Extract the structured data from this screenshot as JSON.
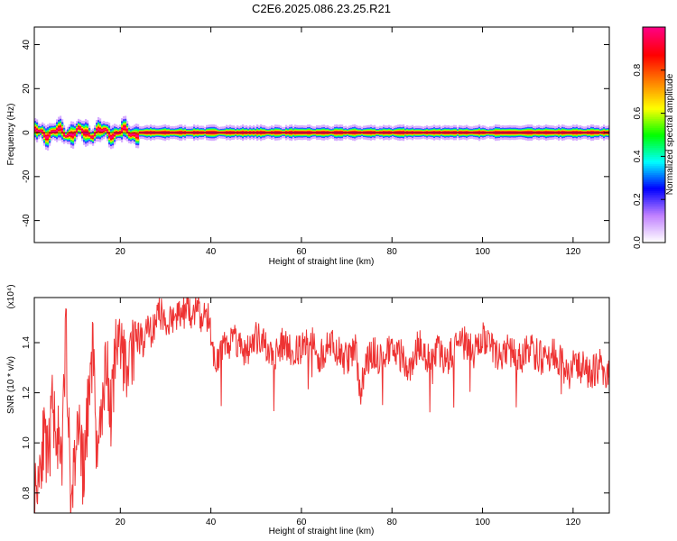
{
  "title": "C2E6.2025.086.23.25.R21",
  "chart_data": [
    {
      "type": "heatmap",
      "xlabel": "Height of straight line (km)",
      "ylabel": "Frequency (Hz)",
      "xlim": [
        1,
        128
      ],
      "ylim": [
        -50,
        48
      ],
      "x_ticks": [
        20,
        40,
        60,
        80,
        100,
        120
      ],
      "y_ticks": [
        -40,
        -20,
        0,
        20,
        40
      ],
      "colorbar": {
        "label": "Normalized spectral amplitude",
        "range": [
          0.0,
          1.0
        ],
        "ticks": [
          0.0,
          0.2,
          0.4,
          0.6,
          0.8
        ],
        "tick_labels": [
          "0.0",
          "0.2",
          "0.4",
          "0.6",
          "0.8"
        ],
        "colors": [
          "#ffffff",
          "#c080ff",
          "#0000ff",
          "#00ffff",
          "#00ff00",
          "#ffff00",
          "#ff8000",
          "#ff0000",
          "#ff0080"
        ]
      },
      "ridge": {
        "center_freq_hz": 0,
        "near_wobble_until_km": 24,
        "peak_amplitude": 1.0
      }
    },
    {
      "type": "line",
      "xlabel": "Height of straight line (km)",
      "ylabel": "SNR (10 * v/v)",
      "y_multiplier": "(x10⁴)",
      "xlim": [
        1,
        128
      ],
      "ylim": [
        0.72,
        1.58
      ],
      "x_ticks": [
        20,
        40,
        60,
        80,
        100,
        120
      ],
      "y_ticks": [
        0.8,
        1.0,
        1.2,
        1.4
      ],
      "y_tick_labels": [
        "0.8",
        "1.0",
        "1.2",
        "1.4"
      ],
      "series": [
        {
          "color": "#ee3333",
          "x": [
            1,
            2,
            3,
            4,
            5,
            6,
            7,
            8,
            9,
            10,
            11,
            12,
            13,
            14,
            15,
            16,
            17,
            18,
            19,
            20,
            21,
            22,
            23,
            24,
            25,
            26,
            27,
            28,
            29,
            30,
            31,
            32,
            33,
            34,
            35,
            36,
            37,
            38,
            39,
            40,
            41,
            42,
            43,
            44,
            45,
            46,
            48,
            50,
            52,
            54,
            56,
            58,
            60,
            62,
            64,
            66,
            68,
            70,
            72,
            73,
            74,
            76,
            78,
            80,
            82,
            84,
            86,
            88,
            90,
            92,
            94,
            96,
            98,
            100,
            102,
            104,
            106,
            108,
            110,
            112,
            114,
            116,
            118,
            119,
            120,
            122,
            124,
            126,
            128
          ],
          "y": [
            0.78,
            0.9,
            1.02,
            0.9,
            1.15,
            1.05,
            0.86,
            1.48,
            0.76,
            0.95,
            1.1,
            0.84,
            1.2,
            1.4,
            0.85,
            1.2,
            1.3,
            1.12,
            1.35,
            1.42,
            1.3,
            1.38,
            1.45,
            1.42,
            1.4,
            1.48,
            1.44,
            1.5,
            1.52,
            1.46,
            1.5,
            1.47,
            1.53,
            1.52,
            1.56,
            1.5,
            1.54,
            1.48,
            1.52,
            1.45,
            1.3,
            1.36,
            1.42,
            1.38,
            1.44,
            1.4,
            1.36,
            1.42,
            1.38,
            1.34,
            1.4,
            1.36,
            1.38,
            1.42,
            1.34,
            1.4,
            1.36,
            1.33,
            1.38,
            1.18,
            1.32,
            1.36,
            1.32,
            1.38,
            1.35,
            1.3,
            1.4,
            1.34,
            1.38,
            1.33,
            1.37,
            1.4,
            1.36,
            1.42,
            1.38,
            1.34,
            1.37,
            1.33,
            1.38,
            1.35,
            1.32,
            1.36,
            1.3,
            1.25,
            1.34,
            1.3,
            1.28,
            1.31,
            1.27
          ],
          "noise_amplitude": 0.07
        }
      ]
    }
  ]
}
